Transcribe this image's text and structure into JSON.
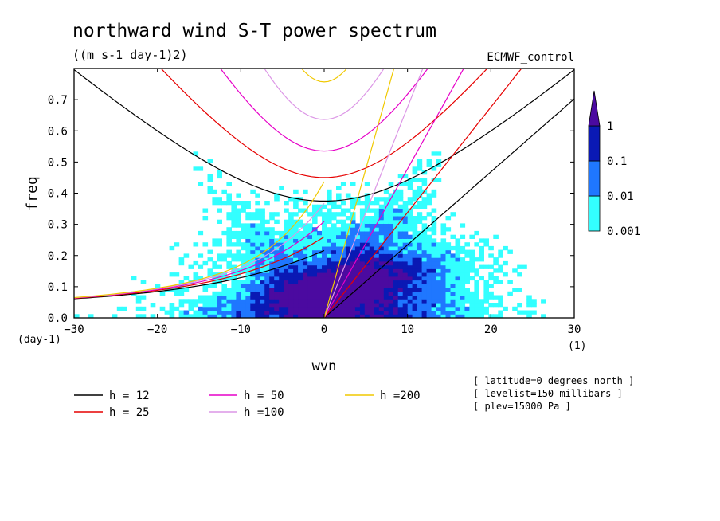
{
  "chart_data": {
    "type": "heatmap",
    "title": "northward wind S-T power spectrum",
    "subtitle": "((m s-1 day-1)2)",
    "dataset_label": "ECMWF_control",
    "xlabel": "wvn",
    "ylabel": "freq",
    "x_unit": "(1)",
    "y_unit": "(day-1)",
    "xlim": [
      -30,
      30
    ],
    "ylim": [
      0,
      0.8
    ],
    "xticks": [
      -30,
      -20,
      -10,
      0,
      10,
      20,
      30
    ],
    "yticks": [
      0.0,
      0.1,
      0.2,
      0.3,
      0.4,
      0.5,
      0.6,
      0.7
    ],
    "colorbar": {
      "levels": [
        0.001,
        0.01,
        0.1,
        1
      ],
      "labels": [
        "0.001",
        "0.01",
        "0.1",
        "1"
      ],
      "colors": [
        "#33ffff",
        "#1f77ff",
        "#0a19b4",
        "#4b0aa0"
      ]
    },
    "dispersion_curves": [
      {
        "name": "h = 12",
        "h": 12,
        "color": "#000000"
      },
      {
        "name": "h = 25",
        "h": 25,
        "color": "#e60000"
      },
      {
        "name": "h = 50",
        "h": 50,
        "color": "#e600c8"
      },
      {
        "name": "h =100",
        "h": 100,
        "color": "#dc96e6"
      },
      {
        "name": "h =200",
        "h": 200,
        "color": "#f0c800"
      }
    ],
    "annotations": [
      "[ latitude=0 degrees_north ]",
      "[ levelist=150 millibars ]",
      "[ plev=15000 Pa ]"
    ]
  }
}
